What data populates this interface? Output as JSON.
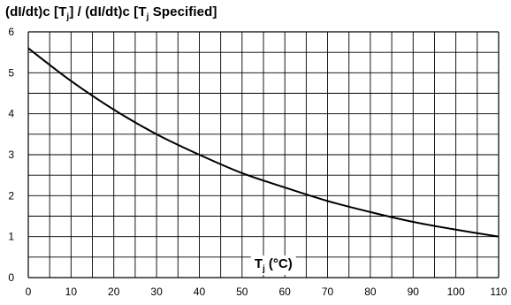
{
  "chart_data": {
    "type": "line",
    "title_parts": {
      "a": "(dI/dt)c [T",
      "a_sub": "j",
      "b": "] / (dI/dt)c [T",
      "b_sub": "j",
      "c": " Specified]"
    },
    "xlabel_parts": {
      "main": "T",
      "sub": "j",
      "rest": " (°C)"
    },
    "xlim": [
      0,
      110
    ],
    "ylim": [
      0,
      6
    ],
    "x_ticks": [
      0,
      10,
      20,
      30,
      40,
      50,
      60,
      70,
      80,
      90,
      100,
      110
    ],
    "y_ticks": [
      0,
      1,
      2,
      3,
      4,
      5,
      6
    ],
    "grid": true,
    "series": [
      {
        "x": [
          0,
          10,
          20,
          30,
          40,
          50,
          60,
          70,
          80,
          90,
          100,
          110
        ],
        "y": [
          5.6,
          4.8,
          4.1,
          3.5,
          3.0,
          2.55,
          2.2,
          1.87,
          1.6,
          1.36,
          1.17,
          1.0
        ]
      }
    ],
    "colors": {
      "line": "#000000",
      "grid": "#000000"
    }
  }
}
